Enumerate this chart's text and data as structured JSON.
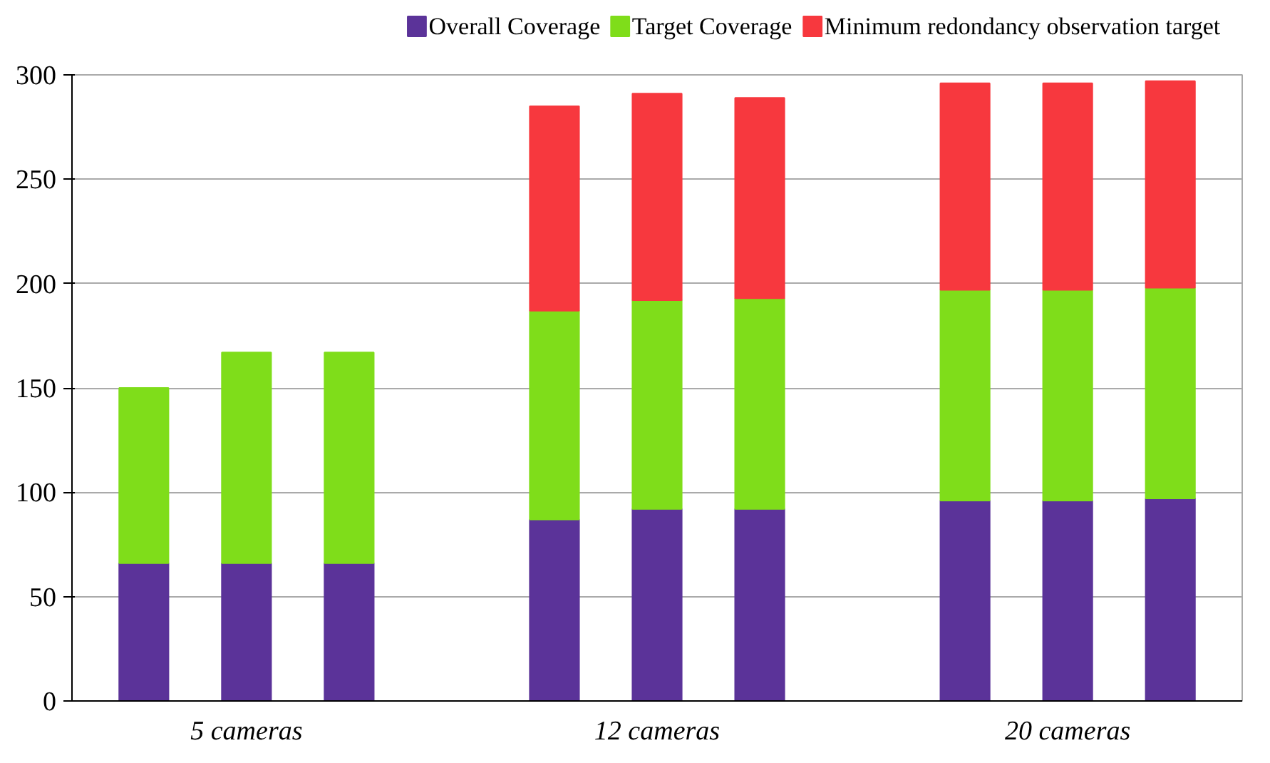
{
  "chart_data": {
    "type": "bar",
    "stacked": true,
    "categories": [
      null,
      "5 cameras",
      null,
      null,
      null,
      "12 cameras",
      null,
      null,
      null,
      "20 cameras",
      null
    ],
    "series": [
      {
        "name": "Overall Coverage",
        "color": "#5b3399",
        "values": [
          66,
          66,
          66,
          null,
          87,
          92,
          92,
          null,
          96,
          96,
          97
        ]
      },
      {
        "name": "Target Coverage",
        "color": "#7fdd1a",
        "values": [
          84,
          101,
          101,
          null,
          100,
          100,
          101,
          null,
          101,
          101,
          101
        ]
      },
      {
        "name": "Minimum redondancy observation target",
        "color": "#f7383e",
        "values": [
          null,
          null,
          null,
          null,
          98,
          99,
          96,
          null,
          99,
          99,
          99
        ]
      }
    ],
    "ylim": [
      0,
      300
    ],
    "yticks": [
      0,
      50,
      100,
      150,
      200,
      250,
      300
    ],
    "grid": "y",
    "legend": "top"
  }
}
